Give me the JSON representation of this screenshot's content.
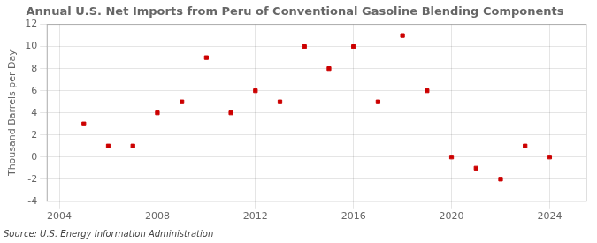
{
  "chart_data": {
    "type": "scatter",
    "title": "Annual U.S. Net Imports from Peru of Conventional Gasoline Blending Components",
    "ylabel": "Thousand Barrels per Day",
    "annotations": [
      "Source: U.S. Energy Information Administration"
    ],
    "x": [
      2005,
      2006,
      2007,
      2008,
      2009,
      2010,
      2011,
      2012,
      2013,
      2014,
      2015,
      2016,
      2017,
      2018,
      2019,
      2020,
      2021,
      2022,
      2023,
      2024
    ],
    "values": [
      3,
      1,
      1,
      4,
      5,
      9,
      4,
      6,
      5,
      10,
      8,
      10,
      5,
      11,
      6,
      0,
      -1,
      -2,
      1,
      0
    ],
    "color": "#cc0000",
    "marker": "square",
    "xlim": [
      2003.5,
      2025.5
    ],
    "xticks": [
      2004,
      2008,
      2012,
      2016,
      2020,
      2024
    ],
    "ylim": [
      -4,
      12
    ],
    "yticks": [
      -4,
      -2,
      0,
      2,
      4,
      6,
      8,
      10,
      12
    ],
    "grid": true
  }
}
